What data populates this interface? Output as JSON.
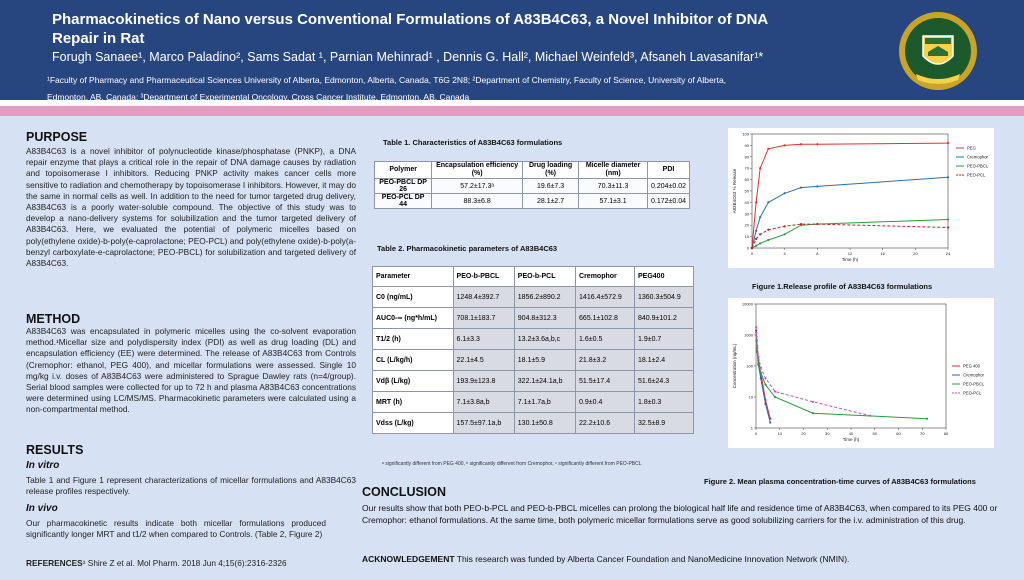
{
  "header": {
    "title": "Pharmacokinetics of Nano versus Conventional Formulations of A83B4C63, a Novel Inhibitor of DNA Repair in Rat",
    "authors": "Forugh Sanaee¹, Marco Paladino², Sams Sadat ¹, Parnian Mehinrad¹ , Dennis G. Hall², Michael Weinfeld³, Afsaneh Lavasanifar¹*",
    "affiliation_line1": "¹Faculty of Pharmacy and Pharmaceutical Sciences University of Alberta, Edmonton, Alberta, Canada, T6G 2N8; ²Department of Chemistry, Faculty of Science, University of Alberta,",
    "affiliation_line2": "Edmonton, AB, Canada; ³Department of Experimental Oncology, Cross Cancer Institute, Edmonton, AB, Canada",
    "logo_text": "UNIVERSITY OF ALBERTA",
    "logo_motto": "QUAECUMQUE VERA"
  },
  "purpose": {
    "heading": "PURPOSE",
    "text": "A83B4C63 is a novel inhibitor of polynucleotide kinase/phosphatase (PNKP), a DNA repair enzyme that plays a critical role in the repair of DNA damage causes by radiation and topoisomerase I inhibitors. Reducing PNKP activity makes cancer cells more sensitive to radiation and chemotherapy by topoisomerase I inhibitors. However, it may do the same in normal cells as well. In addition to the need for tumor targeted drug delivery, A83B4C63 is a poorly water-soluble compound. The objective of this study was to develop a nano-delivery systems for solubilization and the tumor targeted delivery of A83B4C63. Here, we evaluated the potential of polymeric micelles based on poly(ethylene oxide)-b-poly(e-caprolactone; PEO-PCL) and poly(ethylene oxide)-b-poly(a-benzyl carboxylate-e-caprolactone; PEO-PBCL) for solubilization and targeted delivery of A83B4C63."
  },
  "method": {
    "heading": "METHOD",
    "text": "A83B4C63 was encapsulated in polymeric micelles using the co-solvent evaporation method.¹Micellar size and polydispersity index (PDI) as well as drug loading (DL) and encapsulation efficiency (EE) were determined. The release of A83B4C63 from Controls (Cremophor: ethanol, PEG 400), and micellar formulations were assessed. Single 10 mg/kg i.v. doses of A83B4C63 were administered to Sprague Dawley rats (n=4/group). Serial blood samples were collected for up to 72 h and plasma A83B4C63 concentrations were determined using LC/MS/MS. Pharmacokinetic parameters were calculated using a non-compartmental method."
  },
  "results": {
    "heading": "RESULTS",
    "invitro_heading": "In vitro",
    "invitro_text": "Table 1 and Figure 1 represent characterizations of micellar formulations and A83B4C63 release profiles respectively.",
    "invivo_heading": "In vivo",
    "invivo_text": "Our pharmacokinetic results indicate both micellar formulations produced significantly longer MRT and t1/2 when compared to Controls. (Table 2, Figure 2)"
  },
  "references": {
    "label": "REFERENCES¹",
    "text": "Shire Z et al. Mol Pharm. 2018 Jun 4;15(6):2316-2326"
  },
  "table1": {
    "caption": "Table 1. Characteristics of A83B4C63 formulations",
    "headers": [
      "Polymer",
      "Encapsulation efficiency (%)",
      "Drug loading (%)",
      "Micelle diameter (nm)",
      "PDI"
    ],
    "rows": [
      [
        "PEO-PBCL DP 26",
        "57.2±17.3ᵃ",
        "19.6±7.3",
        "70.3±11.3",
        "0.204±0.02"
      ],
      [
        "PEO-PCL DP 44",
        "88.3±6.8",
        "28.1±2.7",
        "57.1±3.1",
        "0.172±0.04"
      ]
    ]
  },
  "table2": {
    "caption": "Table 2. Pharmacokinetic parameters of A83B4C63",
    "headers": [
      "Parameter",
      "PEO-b-PBCL",
      "PEO-b-PCL",
      "Cremophor",
      "PEG400"
    ],
    "rows": [
      [
        "C0 (ng/mL)",
        "1248.4±392.7",
        "1856.2±890.2",
        "1416.4±572.9",
        "1360.3±504.9"
      ],
      [
        "AUC0-∞ (ng*h/mL)",
        "708.1±183.7",
        "904.8±312.3",
        "665.1±102.8",
        "840.9±101.2"
      ],
      [
        "T1/2 (h)",
        "6.1±3.3",
        "13.2±3.6a,b,c",
        "1.6±0.5",
        "1.9±0.7"
      ],
      [
        "CL (L/kg/h)",
        "22.1±4.5",
        "18.1±5.9",
        "21.8±3.2",
        "18.1±2.4"
      ],
      [
        "Vdβ (L/kg)",
        "193.9±123.8",
        "322.1±24.1a,b",
        "51.5±17.4",
        "51.6±24.3"
      ],
      [
        "MRT (h)",
        "7.1±3.8a,b",
        "7.1±1.7a,b",
        "0.9±0.4",
        "1.8±0.3"
      ],
      [
        "Vdss (L/kg)",
        "157.5±97.1a,b",
        "130.1±50.8",
        "22.2±10.6",
        "32.5±8.9"
      ]
    ],
    "footnote": "ᵃ significantly different from PEG 400, ᵇ significantly different from Cremophor, ᶜ significantly different from PEO-PBCL"
  },
  "figure1": {
    "caption": "Figure 1.Release profile of A83B4C63 formulations",
    "xlabel": "Time (h)",
    "ylabel": "A83B4C63 % Release",
    "chart_data": {
      "type": "line",
      "title": "",
      "xlabel": "Time (h)",
      "ylabel": "A83B4C63 % Release",
      "xlim": [
        0,
        24
      ],
      "ylim": [
        0,
        100
      ],
      "x_ticks": [
        0,
        4,
        8,
        12,
        16,
        20,
        24
      ],
      "y_ticks": [
        0,
        10,
        20,
        30,
        40,
        50,
        60,
        70,
        80,
        90,
        100
      ],
      "series": [
        {
          "name": "PEG",
          "color": "#e03030",
          "dash": false,
          "x": [
            0,
            0.5,
            1,
            2,
            4,
            6,
            8,
            24
          ],
          "y": [
            0,
            40,
            70,
            87,
            90,
            91,
            91,
            92
          ]
        },
        {
          "name": "Cremophor",
          "color": "#2e6fa8",
          "dash": false,
          "x": [
            0,
            0.5,
            1,
            2,
            4,
            6,
            8,
            24
          ],
          "y": [
            0,
            15,
            27,
            40,
            48,
            53,
            54,
            62
          ]
        },
        {
          "name": "PEO-PBCL",
          "color": "#2a9a40",
          "dash": false,
          "x": [
            0,
            0.5,
            1,
            2,
            4,
            6,
            8,
            24
          ],
          "y": [
            0,
            2,
            4,
            7,
            12,
            20,
            21,
            25
          ]
        },
        {
          "name": "PEO-PCL",
          "color": "#c02020",
          "dash": true,
          "x": [
            0,
            0.5,
            1,
            2,
            4,
            6,
            8,
            24
          ],
          "y": [
            0,
            8,
            12,
            16,
            19,
            21,
            21,
            18
          ]
        }
      ]
    }
  },
  "figure2": {
    "caption": "Figure 2. Mean plasma concentration-time  curves of A83B4C63 formulations",
    "xlabel": "Time (h)",
    "ylabel": "Concentration (ng/mL)",
    "chart_data": {
      "type": "line",
      "title": "",
      "xlabel": "Time (h)",
      "ylabel": "Concentration (ng/mL)",
      "xlim": [
        0,
        80
      ],
      "y_scale": "log",
      "ylim": [
        1,
        10000
      ],
      "x_ticks": [
        0,
        10,
        20,
        30,
        40,
        50,
        60,
        70,
        80
      ],
      "y_ticks": [
        1,
        10,
        100,
        1000,
        10000
      ],
      "series": [
        {
          "name": "PEG 400",
          "color": "#e03030",
          "dash": false,
          "x": [
            0.08,
            0.25,
            0.5,
            1,
            2,
            4,
            6
          ],
          "y": [
            1400,
            700,
            380,
            150,
            60,
            8,
            2
          ]
        },
        {
          "name": "Cremophor",
          "color": "#3060b0",
          "dash": false,
          "x": [
            0.08,
            0.25,
            0.5,
            1,
            2,
            4,
            6
          ],
          "y": [
            1400,
            650,
            300,
            110,
            40,
            6,
            1.5
          ]
        },
        {
          "name": "PEO-PBCL",
          "color": "#2a9a40",
          "dash": false,
          "x": [
            0.08,
            0.25,
            0.5,
            1,
            2,
            4,
            8,
            24,
            72
          ],
          "y": [
            1200,
            600,
            280,
            120,
            60,
            25,
            10,
            3,
            2
          ]
        },
        {
          "name": "PEO-PCL",
          "color": "#c050c0",
          "dash": true,
          "x": [
            0.08,
            0.25,
            0.5,
            1,
            2,
            4,
            8,
            24,
            48
          ],
          "y": [
            1800,
            900,
            450,
            200,
            90,
            40,
            15,
            7,
            2.5
          ]
        }
      ]
    }
  },
  "conclusion": {
    "heading": "CONCLUSION",
    "text": "Our results show that both PEO-b-PCL and PEO-b-PBCL micelles can prolong the biological half life and residence time of A83B4C63, when compared to its PEG 400 or Cremophor: ethanol formulations. At the same time, both polymeric micellar formulations serve as good solubilizing carriers for the i.v. administration of this drug."
  },
  "acknowledgement": {
    "label": "ACKNOWLEDGEMENT",
    "text": " This research was funded by Alberta Cancer Foundation and NanoMedicine Innovation Network (NMIN)."
  },
  "colors": {
    "header_bg": "#27467f",
    "accent_pink": "#e89bc2",
    "content_bg": "#d6e2f4"
  }
}
